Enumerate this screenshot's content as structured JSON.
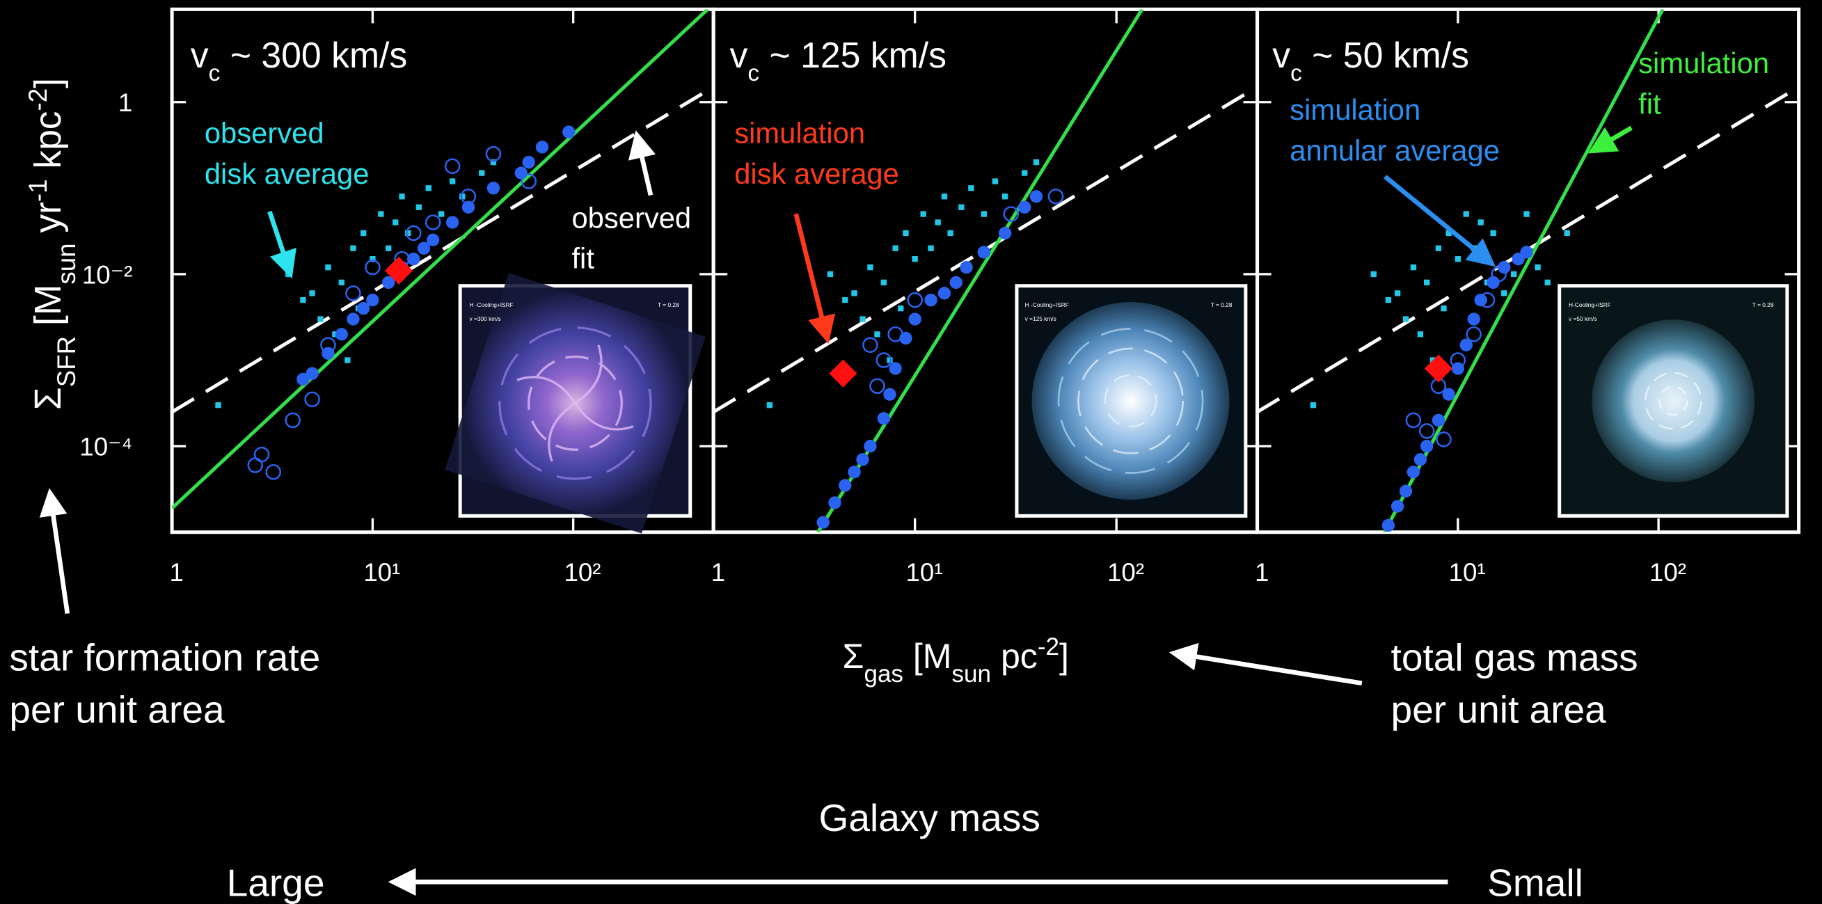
{
  "chart_data": [
    {
      "type": "scatter",
      "title": [
        "v",
        "c",
        " ~ 300 km/s"
      ],
      "ylabel": [
        "Σ",
        "SFR",
        " [M",
        "sun",
        " yr",
        "-1",
        " kpc",
        "-2",
        "]"
      ],
      "log_x": true,
      "log_y": true,
      "xlim": [
        1,
        500
      ],
      "ylim": [
        1e-05,
        12
      ],
      "xticks": [
        1,
        {
          "value": 10,
          "label": "10¹"
        },
        {
          "value": 100,
          "label": "10²"
        }
      ],
      "yticks": [
        {
          "value": 0.0001,
          "label": "10⁻⁴"
        },
        {
          "value": 0.01,
          "label": "10⁻²"
        },
        1
      ],
      "xtick_labels": true,
      "ytick_labels": true,
      "annotations": [
        [
          "observed",
          "disk average"
        ],
        [
          "observed",
          "fit"
        ]
      ],
      "inset_text": [
        "H -Cooling+ISRF",
        "v =300 km/s",
        "T = 0.28"
      ],
      "series": [
        {
          "marker": "dashed-line",
          "color": "#ffffff",
          "x": [
            1,
            500
          ],
          "values": [
            0.00025,
            1.5
          ]
        },
        {
          "marker": "line",
          "color": "#33e04a",
          "x": [
            1,
            468
          ],
          "values": [
            1.9e-05,
            12
          ]
        },
        {
          "marker": "square",
          "color": "#22c6e6",
          "x": [
            1.7,
            3.8,
            4.5,
            5,
            5.5,
            6,
            6.5,
            7,
            8,
            8.5,
            9,
            10,
            11,
            12,
            13,
            14,
            15,
            17,
            19,
            22,
            25,
            28,
            35,
            40,
            7.5
          ],
          "values": [
            0.0003,
            0.01,
            0.005,
            0.006,
            0.003,
            0.012,
            0.002,
            0.008,
            0.02,
            0.004,
            0.03,
            0.015,
            0.05,
            0.02,
            0.04,
            0.08,
            0.03,
            0.06,
            0.1,
            0.05,
            0.12,
            0.08,
            0.15,
            0.2,
            0.001
          ]
        },
        {
          "marker": "open-circle",
          "color": "#2a63f0",
          "x": [
            2.6,
            2.8,
            3.2,
            4,
            5,
            6,
            8,
            10,
            14,
            16,
            20,
            30,
            25,
            40,
            60
          ],
          "values": [
            6e-05,
            8e-05,
            5e-05,
            0.0002,
            0.00035,
            0.0015,
            0.006,
            0.012,
            0.015,
            0.03,
            0.04,
            0.08,
            0.18,
            0.25,
            0.12
          ]
        },
        {
          "marker": "circle",
          "color": "#2a63f0",
          "x": [
            4.5,
            5,
            6,
            7,
            8,
            9,
            10,
            12,
            14,
            16,
            18,
            20,
            25,
            30,
            40,
            55,
            60,
            70,
            95
          ],
          "values": [
            0.0006,
            0.0007,
            0.0012,
            0.002,
            0.003,
            0.004,
            0.005,
            0.008,
            0.012,
            0.015,
            0.02,
            0.025,
            0.04,
            0.06,
            0.1,
            0.15,
            0.2,
            0.3,
            0.45
          ]
        },
        {
          "marker": "diamond",
          "color": "#ff1010",
          "x": [
            13.5
          ],
          "values": [
            0.011
          ]
        }
      ]
    },
    {
      "type": "scatter",
      "title": [
        "v",
        "c",
        " ~ 125 km/s"
      ],
      "xlabel": [
        "Σ",
        "gas",
        " [M",
        "sun",
        " pc",
        "-2",
        "]"
      ],
      "log_x": true,
      "log_y": true,
      "xlim": [
        1,
        500
      ],
      "ylim": [
        1e-05,
        12
      ],
      "xticks": [
        1,
        {
          "value": 10,
          "label": "10¹"
        },
        {
          "value": 100,
          "label": "10²"
        }
      ],
      "yticks": [
        0.0001,
        0.01,
        1
      ],
      "xtick_labels": true,
      "ytick_labels": false,
      "annotations": [
        [
          "simulation",
          "disk average"
        ]
      ],
      "inset_text": [
        "H -Cooling+ISRF",
        "v =125 km/s",
        "T = 0.28"
      ],
      "series": [
        {
          "marker": "dashed-line",
          "color": "#ffffff",
          "x": [
            1,
            500
          ],
          "values": [
            0.00025,
            1.5
          ]
        },
        {
          "marker": "line",
          "color": "#33e04a",
          "x": [
            3.3,
            134
          ],
          "values": [
            1e-05,
            12
          ]
        },
        {
          "marker": "square",
          "color": "#22c6e6",
          "x": [
            1.9,
            3.8,
            4.5,
            5,
            5.5,
            6,
            6.5,
            7,
            8,
            8.5,
            9,
            10,
            11,
            12,
            13,
            14,
            15,
            17,
            19,
            22,
            25,
            28,
            35,
            40,
            7.5
          ],
          "values": [
            0.0003,
            0.01,
            0.005,
            0.006,
            0.003,
            0.012,
            0.002,
            0.008,
            0.02,
            0.004,
            0.03,
            0.015,
            0.05,
            0.02,
            0.04,
            0.08,
            0.03,
            0.06,
            0.1,
            0.05,
            0.12,
            0.08,
            0.15,
            0.2,
            0.001
          ]
        },
        {
          "marker": "open-circle",
          "color": "#2a63f0",
          "x": [
            6,
            7,
            8,
            10,
            50,
            30,
            6.5
          ],
          "values": [
            0.0015,
            0.001,
            0.002,
            0.005,
            0.08,
            0.05,
            0.0005
          ]
        },
        {
          "marker": "circle",
          "color": "#2a63f0",
          "x": [
            3.5,
            4,
            4.5,
            5,
            5.5,
            6,
            7,
            7.5,
            8,
            9,
            10,
            12,
            14,
            16,
            18,
            22,
            28,
            35,
            40
          ],
          "values": [
            1.3e-05,
            2.2e-05,
            3.5e-05,
            5e-05,
            7e-05,
            0.0001,
            0.00021,
            0.0004,
            0.0008,
            0.0018,
            0.003,
            0.005,
            0.006,
            0.008,
            0.012,
            0.018,
            0.03,
            0.06,
            0.08
          ]
        },
        {
          "marker": "diamond",
          "color": "#ff1010",
          "x": [
            4.4
          ],
          "values": [
            0.0007
          ]
        }
      ]
    },
    {
      "type": "scatter",
      "title": [
        "v",
        "c",
        " ~ 50 km/s"
      ],
      "log_x": true,
      "log_y": true,
      "xlim": [
        1,
        500
      ],
      "ylim": [
        1e-05,
        12
      ],
      "xticks": [
        1,
        {
          "value": 10,
          "label": "10¹"
        },
        {
          "value": 100,
          "label": "10²"
        }
      ],
      "yticks": [
        0.0001,
        0.01,
        1
      ],
      "xtick_labels": true,
      "ytick_labels": false,
      "annotations": [
        [
          "simulation",
          "annular average"
        ],
        [
          "simulation",
          "fit"
        ]
      ],
      "inset_text": [
        "H-Cooling+ISRF",
        "v =50 km/s",
        "T = 0.28"
      ],
      "series": [
        {
          "marker": "dashed-line",
          "color": "#ffffff",
          "x": [
            1,
            500
          ],
          "values": [
            0.00025,
            1.5
          ]
        },
        {
          "marker": "line",
          "color": "#33e04a",
          "x": [
            4.3,
            105
          ],
          "values": [
            1e-05,
            12
          ]
        },
        {
          "marker": "square",
          "color": "#22c6e6",
          "x": [
            1.9,
            3.8,
            4.5,
            5,
            5.5,
            6,
            6.5,
            7,
            8,
            8.5,
            9,
            10,
            11,
            12,
            13,
            14,
            15,
            17,
            19,
            22,
            25,
            28,
            35,
            7.5
          ],
          "values": [
            0.0003,
            0.01,
            0.005,
            0.006,
            0.003,
            0.012,
            0.002,
            0.008,
            0.02,
            0.004,
            0.03,
            0.015,
            0.05,
            0.02,
            0.04,
            0.008,
            0.03,
            0.006,
            0.01,
            0.05,
            0.012,
            0.008,
            0.03,
            0.001
          ]
        },
        {
          "marker": "open-circle",
          "color": "#2a63f0",
          "x": [
            6,
            7,
            8,
            10,
            12,
            14,
            16,
            8.5
          ],
          "values": [
            0.0002,
            0.00015,
            0.0005,
            0.001,
            0.002,
            0.005,
            0.01,
            0.00012
          ]
        },
        {
          "marker": "circle",
          "color": "#2a63f0",
          "x": [
            4.5,
            5,
            5.5,
            6,
            6.5,
            7,
            8,
            9,
            10,
            11,
            12,
            13,
            15,
            17,
            20,
            22
          ],
          "values": [
            1.2e-05,
            2e-05,
            3e-05,
            5e-05,
            7e-05,
            0.0001,
            0.0002,
            0.0004,
            0.0008,
            0.0015,
            0.003,
            0.005,
            0.008,
            0.012,
            0.015,
            0.018
          ]
        },
        {
          "marker": "diamond",
          "color": "#ff1010",
          "x": [
            8
          ],
          "values": [
            0.0008
          ]
        }
      ]
    }
  ],
  "annotations": {
    "left": [
      "star formation rate",
      "per unit area"
    ],
    "right": [
      "total gas mass",
      "per unit area"
    ],
    "axis_title": "Galaxy mass",
    "large": "Large",
    "small": "Small"
  }
}
